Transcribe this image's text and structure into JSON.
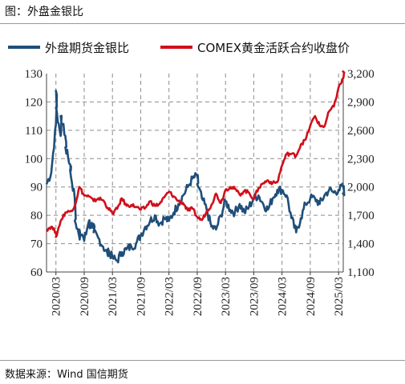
{
  "header": {
    "title": "图：外盘金银比"
  },
  "footer": {
    "source": "数据来源：Wind 国信期货"
  },
  "chart_data": {
    "type": "line",
    "legend_position": "top",
    "grid": "horizontal-dashed",
    "x_ticks": [
      "2020/03",
      "2020/09",
      "2021/03",
      "2021/09",
      "2022/03",
      "2022/09",
      "2023/03",
      "2023/09",
      "2024/03",
      "2024/09",
      "2025/03"
    ],
    "y_left": {
      "min": 60,
      "max": 130,
      "ticks": [
        "60",
        "70",
        "80",
        "90",
        "100",
        "110",
        "120",
        "130"
      ]
    },
    "y_right": {
      "min": 1100,
      "max": 3200,
      "ticks": [
        "1,100",
        "1,400",
        "1,700",
        "2,000",
        "2,300",
        "2,600",
        "2,900",
        "3,200"
      ]
    },
    "series": [
      {
        "name": "外盘期货金银比",
        "axis": "left",
        "color": "#1f4e79",
        "points": [
          [
            "2020/01",
            91
          ],
          [
            "2020/02",
            95
          ],
          [
            "2020/03",
            112
          ],
          [
            "2020/03",
            124
          ],
          [
            "2020/03",
            118
          ],
          [
            "2020/04",
            108
          ],
          [
            "2020/04",
            115
          ],
          [
            "2020/05",
            108
          ],
          [
            "2020/05",
            104
          ],
          [
            "2020/06",
            98
          ],
          [
            "2020/06",
            96
          ],
          [
            "2020/07",
            86
          ],
          [
            "2020/07",
            78
          ],
          [
            "2020/08",
            72
          ],
          [
            "2020/08",
            75
          ],
          [
            "2020/09",
            71
          ],
          [
            "2020/10",
            78
          ],
          [
            "2020/10",
            76
          ],
          [
            "2020/11",
            77
          ],
          [
            "2020/11",
            74
          ],
          [
            "2020/12",
            72
          ],
          [
            "2021/01",
            69
          ],
          [
            "2021/02",
            66
          ],
          [
            "2021/02",
            68
          ],
          [
            "2021/03",
            65
          ],
          [
            "2021/04",
            64
          ],
          [
            "2021/05",
            67
          ],
          [
            "2021/06",
            68
          ],
          [
            "2021/07",
            69
          ],
          [
            "2021/08",
            70
          ],
          [
            "2021/09",
            73
          ],
          [
            "2021/10",
            76
          ],
          [
            "2021/11",
            78
          ],
          [
            "2021/12",
            80
          ],
          [
            "2022/01",
            77
          ],
          [
            "2022/02",
            79
          ],
          [
            "2022/03",
            78
          ],
          [
            "2022/04",
            81
          ],
          [
            "2022/05",
            84
          ],
          [
            "2022/06",
            87
          ],
          [
            "2022/07",
            90
          ],
          [
            "2022/08",
            93
          ],
          [
            "2022/09",
            94
          ],
          [
            "2022/09",
            91
          ],
          [
            "2022/10",
            86
          ],
          [
            "2022/11",
            82
          ],
          [
            "2022/12",
            76
          ],
          [
            "2023/01",
            75
          ],
          [
            "2023/02",
            80
          ],
          [
            "2023/03",
            85
          ],
          [
            "2023/04",
            82
          ],
          [
            "2023/05",
            81
          ],
          [
            "2023/06",
            84
          ],
          [
            "2023/07",
            81
          ],
          [
            "2023/08",
            83
          ],
          [
            "2023/09",
            86
          ],
          [
            "2023/10",
            87
          ],
          [
            "2023/11",
            84
          ],
          [
            "2023/12",
            82
          ],
          [
            "2024/01",
            86
          ],
          [
            "2024/02",
            89
          ],
          [
            "2024/03",
            89
          ],
          [
            "2024/04",
            87
          ],
          [
            "2024/05",
            79
          ],
          [
            "2024/06",
            74
          ],
          [
            "2024/07",
            79
          ],
          [
            "2024/08",
            84
          ],
          [
            "2024/09",
            86
          ],
          [
            "2024/10",
            86
          ],
          [
            "2024/11",
            84
          ],
          [
            "2024/12",
            87
          ],
          [
            "2025/01",
            89
          ],
          [
            "2025/02",
            88
          ],
          [
            "2025/03",
            89
          ],
          [
            "2025/04",
            90
          ],
          [
            "2025/04",
            88
          ]
        ]
      },
      {
        "name": "COMEX黄金活跃合约收盘价",
        "axis": "right",
        "color": "#d0101c",
        "points": [
          [
            "2020/01",
            1550
          ],
          [
            "2020/02",
            1580
          ],
          [
            "2020/03",
            1520
          ],
          [
            "2020/03",
            1470
          ],
          [
            "2020/04",
            1640
          ],
          [
            "2020/05",
            1730
          ],
          [
            "2020/06",
            1740
          ],
          [
            "2020/07",
            1800
          ],
          [
            "2020/08",
            2000
          ],
          [
            "2020/09",
            1910
          ],
          [
            "2020/10",
            1900
          ],
          [
            "2020/11",
            1850
          ],
          [
            "2020/12",
            1880
          ],
          [
            "2021/01",
            1860
          ],
          [
            "2021/02",
            1780
          ],
          [
            "2021/03",
            1720
          ],
          [
            "2021/04",
            1770
          ],
          [
            "2021/05",
            1880
          ],
          [
            "2021/06",
            1800
          ],
          [
            "2021/07",
            1810
          ],
          [
            "2021/08",
            1790
          ],
          [
            "2021/09",
            1760
          ],
          [
            "2021/10",
            1780
          ],
          [
            "2021/11",
            1850
          ],
          [
            "2021/12",
            1800
          ],
          [
            "2022/01",
            1820
          ],
          [
            "2022/02",
            1890
          ],
          [
            "2022/03",
            1950
          ],
          [
            "2022/04",
            1900
          ],
          [
            "2022/05",
            1850
          ],
          [
            "2022/06",
            1830
          ],
          [
            "2022/07",
            1750
          ],
          [
            "2022/08",
            1770
          ],
          [
            "2022/09",
            1680
          ],
          [
            "2022/10",
            1650
          ],
          [
            "2022/11",
            1740
          ],
          [
            "2022/12",
            1810
          ],
          [
            "2023/01",
            1930
          ],
          [
            "2023/02",
            1830
          ],
          [
            "2023/03",
            1970
          ],
          [
            "2023/04",
            2000
          ],
          [
            "2023/05",
            1980
          ],
          [
            "2023/06",
            1920
          ],
          [
            "2023/07",
            1960
          ],
          [
            "2023/08",
            1940
          ],
          [
            "2023/09",
            1870
          ],
          [
            "2023/10",
            1990
          ],
          [
            "2023/11",
            2040
          ],
          [
            "2023/12",
            2070
          ],
          [
            "2024/01",
            2040
          ],
          [
            "2024/02",
            2050
          ],
          [
            "2024/03",
            2230
          ],
          [
            "2024/04",
            2350
          ],
          [
            "2024/05",
            2350
          ],
          [
            "2024/06",
            2330
          ],
          [
            "2024/07",
            2450
          ],
          [
            "2024/08",
            2500
          ],
          [
            "2024/09",
            2650
          ],
          [
            "2024/10",
            2750
          ],
          [
            "2024/11",
            2650
          ],
          [
            "2024/12",
            2640
          ],
          [
            "2025/01",
            2800
          ],
          [
            "2025/02",
            2850
          ],
          [
            "2025/03",
            3050
          ],
          [
            "2025/04",
            3150
          ],
          [
            "2025/04",
            3230
          ]
        ]
      }
    ]
  }
}
